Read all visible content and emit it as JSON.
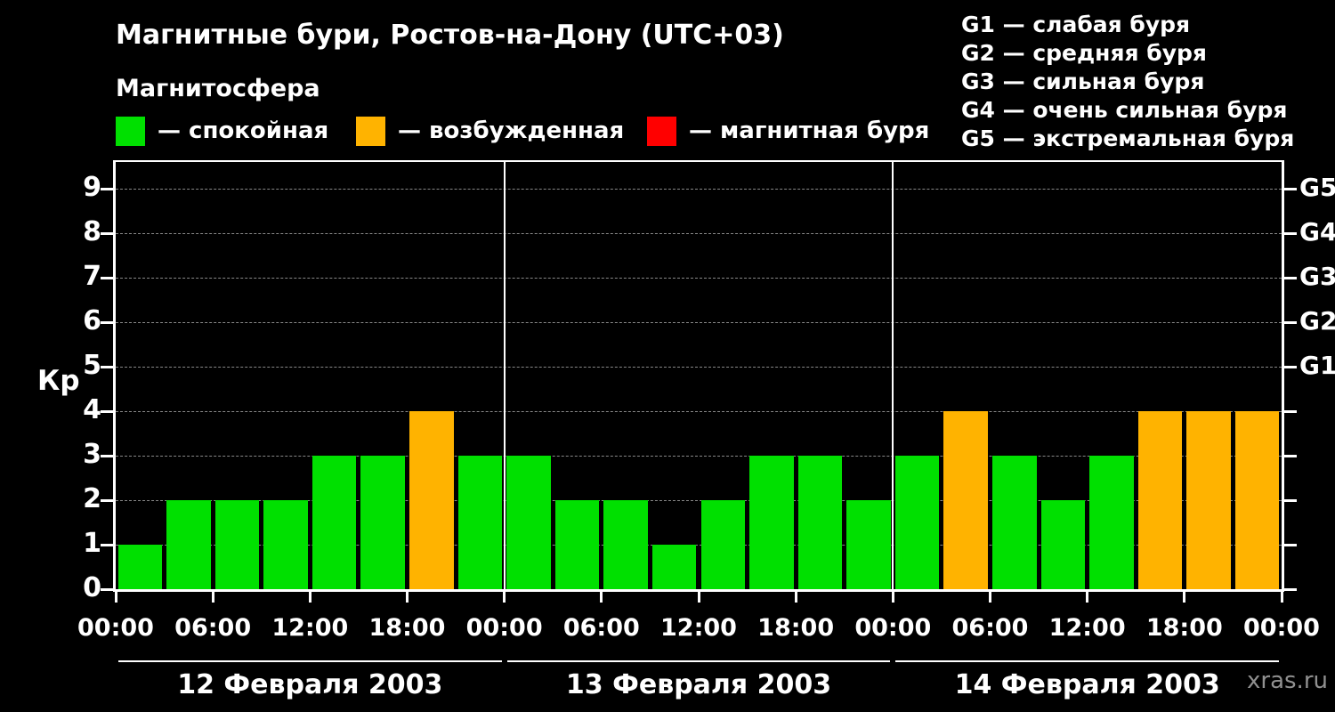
{
  "title": "Магнитные бури, Ростов-на-Дону (UTC+03)",
  "subtitle": "Магнитосфера",
  "legend": [
    {
      "name": "quiet",
      "label": "— спокойная",
      "color": "#00e000"
    },
    {
      "name": "excited",
      "label": "— возбужденная",
      "color": "#ffb300"
    },
    {
      "name": "storm",
      "label": "— магнитная буря",
      "color": "#ff0000"
    }
  ],
  "storm_scale": [
    "G1 — слабая буря",
    "G2 — средняя буря",
    "G3 — сильная буря",
    "G4 — очень сильная буря",
    "G5 — экстремальная буря"
  ],
  "watermark": "xras.ru",
  "chart_data": {
    "type": "bar",
    "title": "Магнитные бури, Ростов-на-Дону (UTC+03)",
    "ylabel": "Кр",
    "ylim": [
      0,
      9
    ],
    "yticks": [
      0,
      1,
      2,
      3,
      4,
      5,
      6,
      7,
      8,
      9
    ],
    "grid": "dashed horizontal at integer Kp levels",
    "bar_interval_hours": 3,
    "right_axis_labels": [
      {
        "value": 5,
        "label": "G1"
      },
      {
        "value": 6,
        "label": "G2"
      },
      {
        "value": 7,
        "label": "G3"
      },
      {
        "value": 8,
        "label": "G4"
      },
      {
        "value": 9,
        "label": "G5"
      }
    ],
    "x_tick_hours": [
      "00:00",
      "06:00",
      "12:00",
      "18:00"
    ],
    "final_tick": "00:00",
    "days": [
      {
        "date": "12 Февраля 2003",
        "values": [
          1,
          2,
          2,
          2,
          3,
          3,
          4,
          3
        ]
      },
      {
        "date": "13 Февраля 2003",
        "values": [
          3,
          2,
          2,
          1,
          2,
          3,
          3,
          2
        ]
      },
      {
        "date": "14 Февраля 2003",
        "values": [
          3,
          4,
          3,
          2,
          3,
          4,
          4,
          4
        ]
      }
    ],
    "colors": {
      "quiet": "#00e000",
      "excited": "#ffb300",
      "storm": "#ff0000"
    },
    "color_rule": "Kp<4 quiet(green), Kp=4 excited(orange), Kp>=5 storm(red)"
  }
}
